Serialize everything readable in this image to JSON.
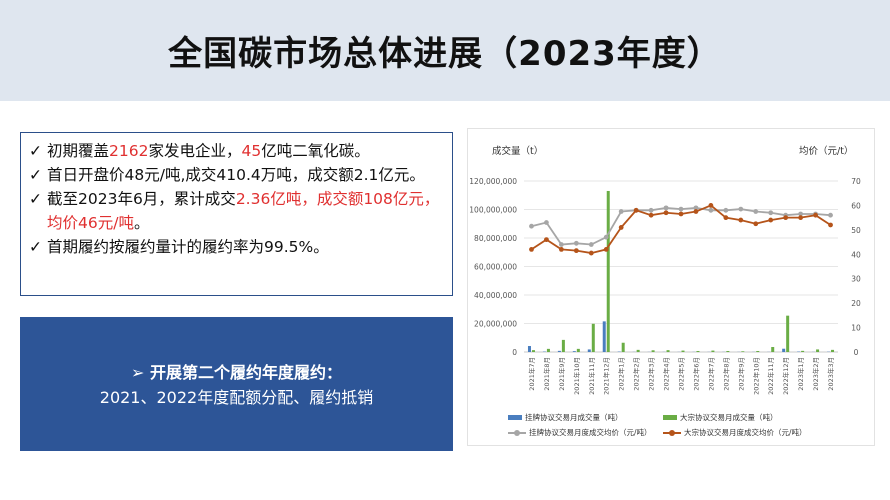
{
  "title": "全国碳市场总体进展（2023年度）",
  "bullets": [
    {
      "check": "✓",
      "parts": [
        {
          "t": "初期覆盖",
          "red": false
        },
        {
          "t": "2162",
          "red": true
        },
        {
          "t": "家发电企业，",
          "red": false
        },
        {
          "t": "45",
          "red": true
        },
        {
          "t": "亿吨二氧化碳。",
          "red": false
        }
      ]
    },
    {
      "check": "✓",
      "parts": [
        {
          "t": "首日开盘价48元/吨,成交410.4万吨，成交额2.1亿元。",
          "red": false
        }
      ]
    },
    {
      "check": "✓",
      "parts": [
        {
          "t": "截至2023年6月，累计成交",
          "red": false
        },
        {
          "t": "2.36亿吨，成交额108亿元，均价46元/吨",
          "red": true
        },
        {
          "t": "。",
          "red": false
        }
      ]
    },
    {
      "check": "✓",
      "parts": [
        {
          "t": "首期履约按履约量计的履约率为99.5%。",
          "red": false
        }
      ]
    }
  ],
  "blue_box": {
    "line1": "➢  开展第二个履约年度履约：",
    "line2": "2021、2022年度配额分配、履约抵销"
  },
  "colors": {
    "header_bg": "#dfe6ef",
    "blue_box": "#2d5597",
    "highlight_red": "#e03030",
    "listed_bar": "#4a7ebf",
    "bulk_bar": "#6aad45",
    "listed_price_line": "#a6a6a6",
    "bulk_price_line": "#b5541a"
  },
  "chart_data": {
    "type": "bar",
    "combo": "bar + line (dual axis)",
    "ylabel_left": "成交量（t）",
    "ylabel_right": "均价（元/t）",
    "ylim_left": [
      0,
      120000000
    ],
    "ylim_right": [
      0,
      70
    ],
    "yticks_left": [
      "0",
      "20,000,000",
      "40,000,000",
      "60,000,000",
      "80,000,000",
      "100,000,000",
      "120,000,000"
    ],
    "yticks_right": [
      "0",
      "10",
      "20",
      "30",
      "40",
      "50",
      "60",
      "70"
    ],
    "grid": true,
    "legend_position": "bottom",
    "categories": [
      "2021年7月",
      "2021年8月",
      "2021年9月",
      "2021年10月",
      "2021年11月",
      "2021年12月",
      "2022年1月",
      "2022年2月",
      "2022年3月",
      "2022年4月",
      "2022年5月",
      "2022年6月",
      "2022年7月",
      "2022年8月",
      "2022年9月",
      "2022年10月",
      "2022年11月",
      "2022年12月",
      "2023年1月",
      "2023年2月",
      "2023年3月"
    ],
    "series": [
      {
        "name": "挂牌协议交易月成交量（吨）",
        "kind": "bar",
        "axis": "left",
        "color": "#4a7ebf",
        "values": [
          4200000,
          300000,
          800000,
          600000,
          1800000,
          21500000,
          300000,
          100000,
          100000,
          100000,
          100000,
          100000,
          100000,
          100000,
          100000,
          100000,
          100000,
          2300000,
          300000,
          100000,
          200000
        ]
      },
      {
        "name": "大宗协议交易月成交量（吨）",
        "kind": "bar",
        "axis": "left",
        "color": "#6aad45",
        "values": [
          1300000,
          2200000,
          8500000,
          2200000,
          19800000,
          113000000,
          6500000,
          1500000,
          1200000,
          1300000,
          1000000,
          700000,
          1000000,
          700000,
          500000,
          700000,
          3500000,
          25500000,
          800000,
          1800000,
          1500000
        ]
      },
      {
        "name": "挂牌协议交易月度成交均价（元/吨）",
        "kind": "line",
        "axis": "right",
        "color": "#a6a6a6",
        "values": [
          51.5,
          53,
          44,
          44.5,
          44,
          47,
          57.5,
          58,
          58,
          59,
          58.5,
          59,
          58,
          58,
          58.5,
          57.5,
          57,
          56,
          56.5,
          56.5,
          56
        ]
      },
      {
        "name": "大宗协议交易月度成交均价（元/吨）",
        "kind": "line",
        "axis": "right",
        "color": "#b5541a",
        "values": [
          42,
          46,
          42,
          41.5,
          40.5,
          42,
          51,
          58,
          56,
          57,
          56.5,
          57.5,
          60,
          55,
          54,
          52.5,
          54,
          55,
          55,
          56,
          52
        ]
      }
    ]
  }
}
